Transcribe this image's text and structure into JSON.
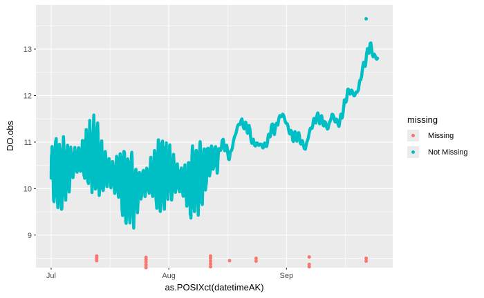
{
  "chart_data": {
    "type": "scatter",
    "title": "",
    "xlabel": "as.POSIXct(datetimeAK)",
    "ylabel": "DO.obs",
    "x_ticks": [
      {
        "label": "Jul",
        "date": "2021-07-01"
      },
      {
        "label": "Aug",
        "date": "2021-08-01"
      },
      {
        "label": "Sep",
        "date": "2021-09-01"
      }
    ],
    "xlim": [
      "2021-06-27",
      "2021-09-29"
    ],
    "y_ticks": [
      9,
      10,
      11,
      12,
      13
    ],
    "ylim": [
      8.3,
      13.95
    ],
    "grid": true,
    "legend": {
      "title": "missing",
      "position": "right",
      "entries": [
        {
          "name": "Missing",
          "color": "#F8766D"
        },
        {
          "name": "Not Missing",
          "color": "#00BFC4"
        }
      ]
    },
    "series": [
      {
        "name": "Missing",
        "color": "#F8766D",
        "points": [
          {
            "x": "2021-07-13",
            "y": 8.55
          },
          {
            "x": "2021-07-13",
            "y": 8.5
          },
          {
            "x": "2021-07-13",
            "y": 8.45
          },
          {
            "x": "2021-07-26",
            "y": 8.52
          },
          {
            "x": "2021-07-26",
            "y": 8.47
          },
          {
            "x": "2021-07-26",
            "y": 8.42
          },
          {
            "x": "2021-07-26",
            "y": 8.36
          },
          {
            "x": "2021-07-26",
            "y": 8.3
          },
          {
            "x": "2021-08-12",
            "y": 8.55
          },
          {
            "x": "2021-08-12",
            "y": 8.5
          },
          {
            "x": "2021-08-12",
            "y": 8.44
          },
          {
            "x": "2021-08-12",
            "y": 8.38
          },
          {
            "x": "2021-08-12",
            "y": 8.32
          },
          {
            "x": "2021-08-17",
            "y": 8.45
          },
          {
            "x": "2021-08-24",
            "y": 8.5
          },
          {
            "x": "2021-08-24",
            "y": 8.44
          },
          {
            "x": "2021-09-07",
            "y": 8.53
          },
          {
            "x": "2021-09-07",
            "y": 8.37
          },
          {
            "x": "2021-09-07",
            "y": 8.32
          },
          {
            "x": "2021-09-22",
            "y": 8.5
          },
          {
            "x": "2021-09-22",
            "y": 8.44
          }
        ]
      },
      {
        "name": "Not Missing",
        "color": "#00BFC4",
        "trend": [
          {
            "x": "2021-07-01",
            "y": 10.35
          },
          {
            "x": "2021-07-03",
            "y": 10.3
          },
          {
            "x": "2021-07-05",
            "y": 10.35
          },
          {
            "x": "2021-07-07",
            "y": 10.6
          },
          {
            "x": "2021-07-09",
            "y": 10.65
          },
          {
            "x": "2021-07-11",
            "y": 10.7
          },
          {
            "x": "2021-07-12",
            "y": 10.75
          },
          {
            "x": "2021-07-13",
            "y": 10.6
          },
          {
            "x": "2021-07-15",
            "y": 10.4
          },
          {
            "x": "2021-07-17",
            "y": 10.3
          },
          {
            "x": "2021-07-19",
            "y": 10.2
          },
          {
            "x": "2021-07-21",
            "y": 10.0
          },
          {
            "x": "2021-07-23",
            "y": 9.9
          },
          {
            "x": "2021-07-25",
            "y": 10.1
          },
          {
            "x": "2021-07-27",
            "y": 10.2
          },
          {
            "x": "2021-07-29",
            "y": 10.2
          },
          {
            "x": "2021-07-31",
            "y": 10.3
          },
          {
            "x": "2021-08-02",
            "y": 10.3
          },
          {
            "x": "2021-08-04",
            "y": 10.2
          },
          {
            "x": "2021-08-06",
            "y": 10.0
          },
          {
            "x": "2021-08-08",
            "y": 10.2
          },
          {
            "x": "2021-08-10",
            "y": 10.25
          },
          {
            "x": "2021-08-12",
            "y": 10.6
          },
          {
            "x": "2021-08-14",
            "y": 10.7
          },
          {
            "x": "2021-08-15",
            "y": 11.0
          },
          {
            "x": "2021-08-16",
            "y": 10.9
          },
          {
            "x": "2021-08-17",
            "y": 10.65
          },
          {
            "x": "2021-08-18",
            "y": 11.0
          },
          {
            "x": "2021-08-19",
            "y": 11.3
          },
          {
            "x": "2021-08-20",
            "y": 11.45
          },
          {
            "x": "2021-08-21",
            "y": 11.35
          },
          {
            "x": "2021-08-22",
            "y": 11.3
          },
          {
            "x": "2021-08-23",
            "y": 11.0
          },
          {
            "x": "2021-08-24",
            "y": 10.95
          },
          {
            "x": "2021-08-25",
            "y": 10.95
          },
          {
            "x": "2021-08-26",
            "y": 10.9
          },
          {
            "x": "2021-08-27",
            "y": 11.0
          },
          {
            "x": "2021-08-28",
            "y": 11.3
          },
          {
            "x": "2021-08-29",
            "y": 11.25
          },
          {
            "x": "2021-08-30",
            "y": 11.5
          },
          {
            "x": "2021-08-31",
            "y": 11.6
          },
          {
            "x": "2021-09-01",
            "y": 11.4
          },
          {
            "x": "2021-09-02",
            "y": 11.2
          },
          {
            "x": "2021-09-03",
            "y": 11.1
          },
          {
            "x": "2021-09-04",
            "y": 11.15
          },
          {
            "x": "2021-09-05",
            "y": 11.0
          },
          {
            "x": "2021-09-06",
            "y": 10.85
          },
          {
            "x": "2021-09-07",
            "y": 11.2
          },
          {
            "x": "2021-09-08",
            "y": 11.4
          },
          {
            "x": "2021-09-09",
            "y": 11.55
          },
          {
            "x": "2021-09-10",
            "y": 11.5
          },
          {
            "x": "2021-09-11",
            "y": 11.4
          },
          {
            "x": "2021-09-12",
            "y": 11.3
          },
          {
            "x": "2021-09-13",
            "y": 11.6
          },
          {
            "x": "2021-09-14",
            "y": 11.45
          },
          {
            "x": "2021-09-15",
            "y": 11.4
          },
          {
            "x": "2021-09-16",
            "y": 11.7
          },
          {
            "x": "2021-09-17",
            "y": 12.05
          },
          {
            "x": "2021-09-18",
            "y": 12.1
          },
          {
            "x": "2021-09-19",
            "y": 12.0
          },
          {
            "x": "2021-09-20",
            "y": 12.15
          },
          {
            "x": "2021-09-21",
            "y": 12.55
          },
          {
            "x": "2021-09-22",
            "y": 12.8
          },
          {
            "x": "2021-09-23",
            "y": 13.1
          },
          {
            "x": "2021-09-24",
            "y": 12.85
          },
          {
            "x": "2021-09-25",
            "y": 12.8
          }
        ],
        "outliers": [
          {
            "x": "2021-09-22",
            "y": 13.65
          }
        ]
      }
    ]
  }
}
